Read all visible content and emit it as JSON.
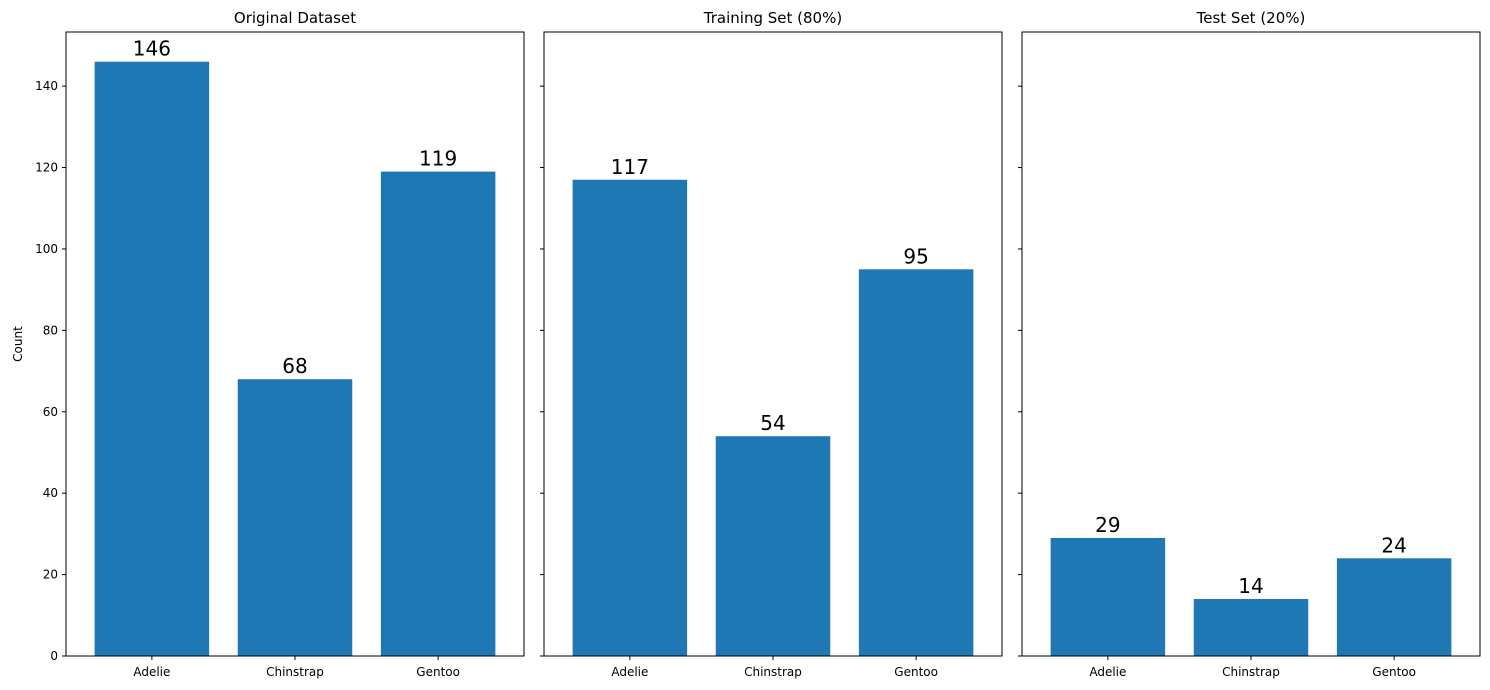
{
  "chart_data": [
    {
      "type": "bar",
      "title": "Original Dataset",
      "categories": [
        "Adelie",
        "Chinstrap",
        "Gentoo"
      ],
      "values": [
        146,
        68,
        119
      ],
      "ylabel": "Count",
      "ylim": [
        0,
        153.3
      ],
      "yticks": [
        0,
        20,
        40,
        60,
        80,
        100,
        120,
        140
      ],
      "bar_color": "#1f77b4",
      "grid": false,
      "legend": "none"
    },
    {
      "type": "bar",
      "title": "Training Set (80%)",
      "categories": [
        "Adelie",
        "Chinstrap",
        "Gentoo"
      ],
      "values": [
        117,
        54,
        95
      ],
      "ylabel": "",
      "ylim": [
        0,
        153.3
      ],
      "bar_color": "#1f77b4",
      "grid": false,
      "legend": "none"
    },
    {
      "type": "bar",
      "title": "Test Set (20%)",
      "categories": [
        "Adelie",
        "Chinstrap",
        "Gentoo"
      ],
      "values": [
        29,
        14,
        24
      ],
      "ylabel": "",
      "ylim": [
        0,
        153.3
      ],
      "bar_color": "#1f77b4",
      "grid": false,
      "legend": "none"
    }
  ]
}
